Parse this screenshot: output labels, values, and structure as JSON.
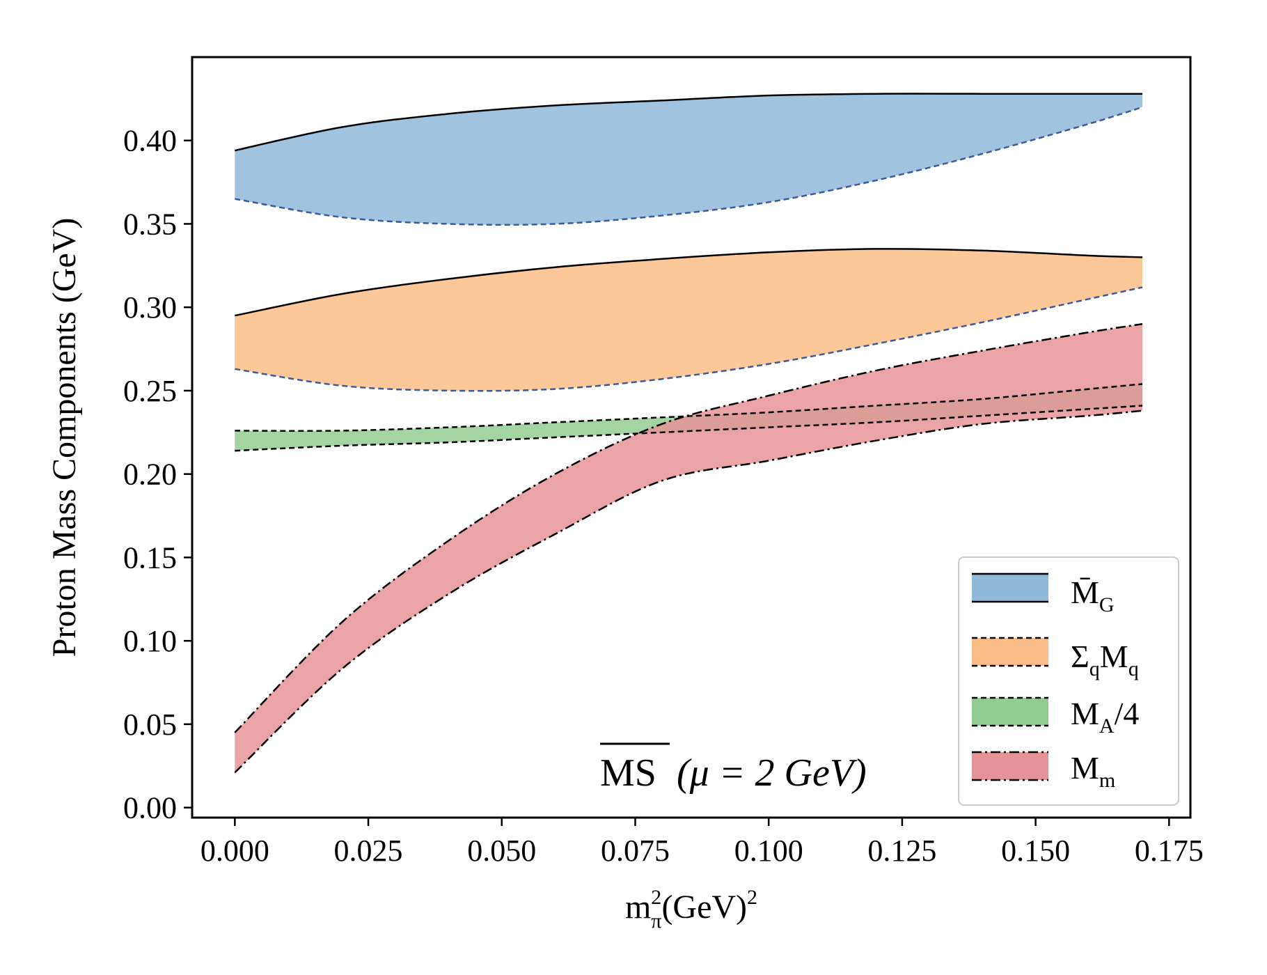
{
  "chart_data": {
    "type": "area",
    "title": "",
    "xlabel": "m",
    "xlabel_sup": "2",
    "xlabel_sub": "π",
    "xlabel_units": "(GeV)",
    "xlabel_units_sup": "2",
    "ylabel": "Proton Mass Components (GeV)",
    "xlim": [
      -0.008,
      0.179
    ],
    "ylim": [
      -0.006,
      0.45
    ],
    "xticks": [
      0.0,
      0.025,
      0.05,
      0.075,
      0.1,
      0.125,
      0.15,
      0.175
    ],
    "xtick_labels": [
      "0.000",
      "0.025",
      "0.050",
      "0.075",
      "0.100",
      "0.125",
      "0.150",
      "0.175"
    ],
    "yticks": [
      0.0,
      0.05,
      0.1,
      0.15,
      0.2,
      0.25,
      0.3,
      0.35,
      0.4
    ],
    "ytick_labels": [
      "0.00",
      "0.05",
      "0.10",
      "0.15",
      "0.20",
      "0.25",
      "0.30",
      "0.35",
      "0.40"
    ],
    "annotation": {
      "scheme": "MS",
      "scale": "(μ = 2 GeV)"
    },
    "legend_position": "lower-right",
    "x": [
      0.0,
      0.02,
      0.04,
      0.06,
      0.08,
      0.1,
      0.12,
      0.14,
      0.16,
      0.17
    ],
    "series": [
      {
        "name": "M̄",
        "subscript": "G",
        "color": "#8fb8d9",
        "upper_style": "solid",
        "lower_style": "dashed",
        "upper": [
          0.394,
          0.408,
          0.416,
          0.421,
          0.424,
          0.427,
          0.428,
          0.428,
          0.428,
          0.428
        ],
        "lower": [
          0.365,
          0.354,
          0.35,
          0.35,
          0.355,
          0.363,
          0.376,
          0.392,
          0.41,
          0.42
        ]
      },
      {
        "name": "Σ",
        "name_sub": "q",
        "name_tail": "M",
        "subscript": "q",
        "color": "#fbbd87",
        "upper_style": "solid",
        "lower_style": "dashed",
        "upper": [
          0.295,
          0.308,
          0.317,
          0.324,
          0.329,
          0.333,
          0.335,
          0.334,
          0.331,
          0.33
        ],
        "lower": [
          0.263,
          0.253,
          0.25,
          0.251,
          0.257,
          0.266,
          0.278,
          0.291,
          0.305,
          0.312
        ]
      },
      {
        "name": "M",
        "subscript": "A",
        "suffix": "/4",
        "color": "#93cc91",
        "upper_style": "dashed",
        "lower_style": "dashed",
        "upper": [
          0.226,
          0.226,
          0.228,
          0.231,
          0.234,
          0.237,
          0.241,
          0.245,
          0.251,
          0.254
        ],
        "lower": [
          0.214,
          0.217,
          0.219,
          0.222,
          0.225,
          0.228,
          0.231,
          0.235,
          0.239,
          0.241
        ]
      },
      {
        "name": "M",
        "subscript": "m",
        "color": "#e69397",
        "upper_style": "dashdot",
        "lower_style": "dashdot",
        "upper": [
          0.045,
          0.111,
          0.16,
          0.2,
          0.23,
          0.247,
          0.262,
          0.274,
          0.285,
          0.29
        ],
        "lower": [
          0.021,
          0.083,
          0.128,
          0.164,
          0.196,
          0.208,
          0.22,
          0.23,
          0.235,
          0.238
        ]
      }
    ]
  }
}
